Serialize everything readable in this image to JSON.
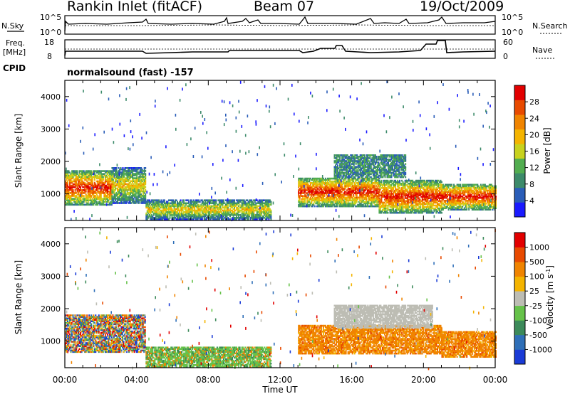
{
  "header": {
    "station": "Rankin Inlet (fitACF)",
    "beam": "Beam 07",
    "date": "19/Oct/2009"
  },
  "top_panels": {
    "nsky_label": "N.Sky",
    "nsky_ticks": [
      "10^5",
      "10^0"
    ],
    "nsearch_label": "N.Search",
    "nsearch_ticks": [
      "10^5",
      "10^0"
    ],
    "freq_label_1": "Freq.",
    "freq_label_2": "[MHz]",
    "freq_ticks": [
      "18",
      "8"
    ],
    "nave_label": "Nave",
    "nave_ticks": [
      "60",
      "0"
    ],
    "cpid_label": "CPID",
    "cpid_value": "normalsound (fast) -157"
  },
  "chart_data": [
    {
      "type": "heatmap",
      "title": "",
      "xlabel": "Time UT",
      "ylabel": "Slant Range [km]",
      "xticks": [
        "00:00",
        "04:00",
        "08:00",
        "12:00",
        "16:00",
        "20:00",
        "00:00"
      ],
      "xlim_hours": [
        0,
        24
      ],
      "yticks": [
        1000,
        2000,
        3000,
        4000
      ],
      "ylim": [
        180,
        4500
      ],
      "colorbar": {
        "label": "Power [dB]",
        "ticks": [
          "4",
          "8",
          "12",
          "16",
          "20",
          "24",
          "28"
        ],
        "colors": [
          "#1a1aff",
          "#2a5db8",
          "#3c8a6a",
          "#52ad50",
          "#c8d21e",
          "#f4b400",
          "#f08400",
          "#e84a00",
          "#e20000"
        ]
      },
      "bands": [
        {
          "t0": 0.0,
          "t1": 2.6,
          "r0": 650,
          "r1": 1700,
          "level": "high"
        },
        {
          "t0": 2.6,
          "t1": 4.5,
          "r0": 700,
          "r1": 1800,
          "level": "medium"
        },
        {
          "t0": 4.5,
          "t1": 11.5,
          "r0": 200,
          "r1": 800,
          "level": "medium"
        },
        {
          "t0": 13.0,
          "t1": 17.5,
          "r0": 600,
          "r1": 1500,
          "level": "high"
        },
        {
          "t0": 17.5,
          "t1": 21.0,
          "r0": 400,
          "r1": 1400,
          "level": "high"
        },
        {
          "t0": 21.0,
          "t1": 24.0,
          "r0": 500,
          "r1": 1300,
          "level": "high"
        },
        {
          "t0": 15.0,
          "t1": 19.0,
          "r0": 1500,
          "r1": 2200,
          "level": "low"
        }
      ]
    },
    {
      "type": "heatmap",
      "title": "",
      "xlabel": "Time UT",
      "ylabel": "Slant Range [km]",
      "xticks": [
        "00:00",
        "04:00",
        "08:00",
        "12:00",
        "16:00",
        "20:00",
        "00:00"
      ],
      "xlim_hours": [
        0,
        24
      ],
      "yticks": [
        1000,
        2000,
        3000,
        4000
      ],
      "ylim": [
        180,
        4500
      ],
      "colorbar": {
        "label": "Velocity [m s^-1]",
        "ticks": [
          "1000",
          "500",
          "100",
          "25",
          "-25",
          "-100",
          "-500",
          "-1000"
        ],
        "colors": [
          "#1a3bd6",
          "#2f6fb8",
          "#3c8a5a",
          "#66c24a",
          "#bdbdb4",
          "#f4b400",
          "#f08400",
          "#e84a00",
          "#e20000"
        ]
      },
      "bands": [
        {
          "t0": 0.0,
          "t1": 4.5,
          "r0": 650,
          "r1": 1800,
          "level": "mixed"
        },
        {
          "t0": 4.5,
          "t1": 11.5,
          "r0": 200,
          "r1": 800,
          "level": "green"
        },
        {
          "t0": 13.0,
          "t1": 21.0,
          "r0": 600,
          "r1": 1500,
          "level": "orange"
        },
        {
          "t0": 15.0,
          "t1": 20.5,
          "r0": 1400,
          "r1": 2100,
          "level": "grey"
        },
        {
          "t0": 21.0,
          "t1": 24.0,
          "r0": 500,
          "r1": 1300,
          "level": "orange"
        }
      ]
    }
  ]
}
